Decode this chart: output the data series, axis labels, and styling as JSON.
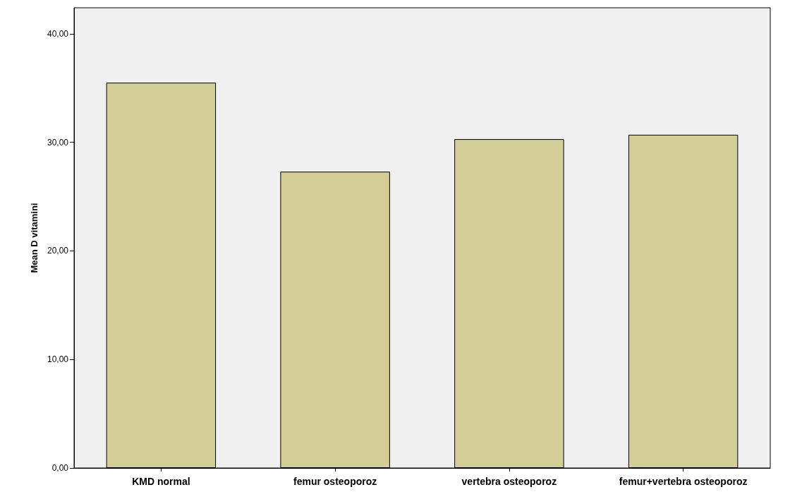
{
  "chart_data": {
    "type": "bar",
    "ylabel": "Mean D vitamini",
    "categories": [
      "KMD normal",
      "femur osteoporoz",
      "vertebra osteoporoz",
      "femur+vertebra osteoporoz"
    ],
    "values": [
      35.5,
      27.3,
      30.3,
      30.7
    ],
    "color": "#d3ce97",
    "ylim": [
      0,
      42.4
    ],
    "yticks": [
      {
        "value": 0,
        "label": "0,00"
      },
      {
        "value": 10,
        "label": "10,00"
      },
      {
        "value": 20,
        "label": "20,00"
      },
      {
        "value": 30,
        "label": "30,00"
      },
      {
        "value": 40,
        "label": "40,00"
      }
    ],
    "grid": false
  }
}
